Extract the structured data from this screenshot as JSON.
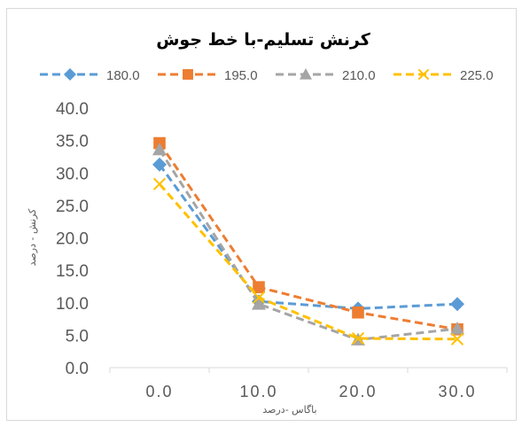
{
  "chart_data": {
    "type": "line",
    "title": "کرنش تسلیم-با خط جوش",
    "xlabel": "باگاس -درصد",
    "ylabel": "کرنش - درصد",
    "categories": [
      "0.0",
      "10.0",
      "20.0",
      "30.0"
    ],
    "yticks": [
      "0.0",
      "5.0",
      "10.0",
      "15.0",
      "20.0",
      "25.0",
      "30.0",
      "35.0",
      "40.0"
    ],
    "ylim": [
      0,
      40
    ],
    "grid": false,
    "legend_position": "top",
    "series": [
      {
        "name": "180.0",
        "values": [
          31.3,
          10.2,
          9.1,
          9.8
        ],
        "color": "#5b9bd5",
        "marker": "diamond"
      },
      {
        "name": "195.0",
        "values": [
          34.6,
          12.4,
          8.5,
          5.9
        ],
        "color": "#ed7d31",
        "marker": "square"
      },
      {
        "name": "210.0",
        "values": [
          33.6,
          9.8,
          4.3,
          6.0
        ],
        "color": "#a5a5a5",
        "marker": "triangle"
      },
      {
        "name": "225.0",
        "values": [
          28.3,
          10.8,
          4.5,
          4.4
        ],
        "color": "#ffc000",
        "marker": "x"
      }
    ]
  }
}
